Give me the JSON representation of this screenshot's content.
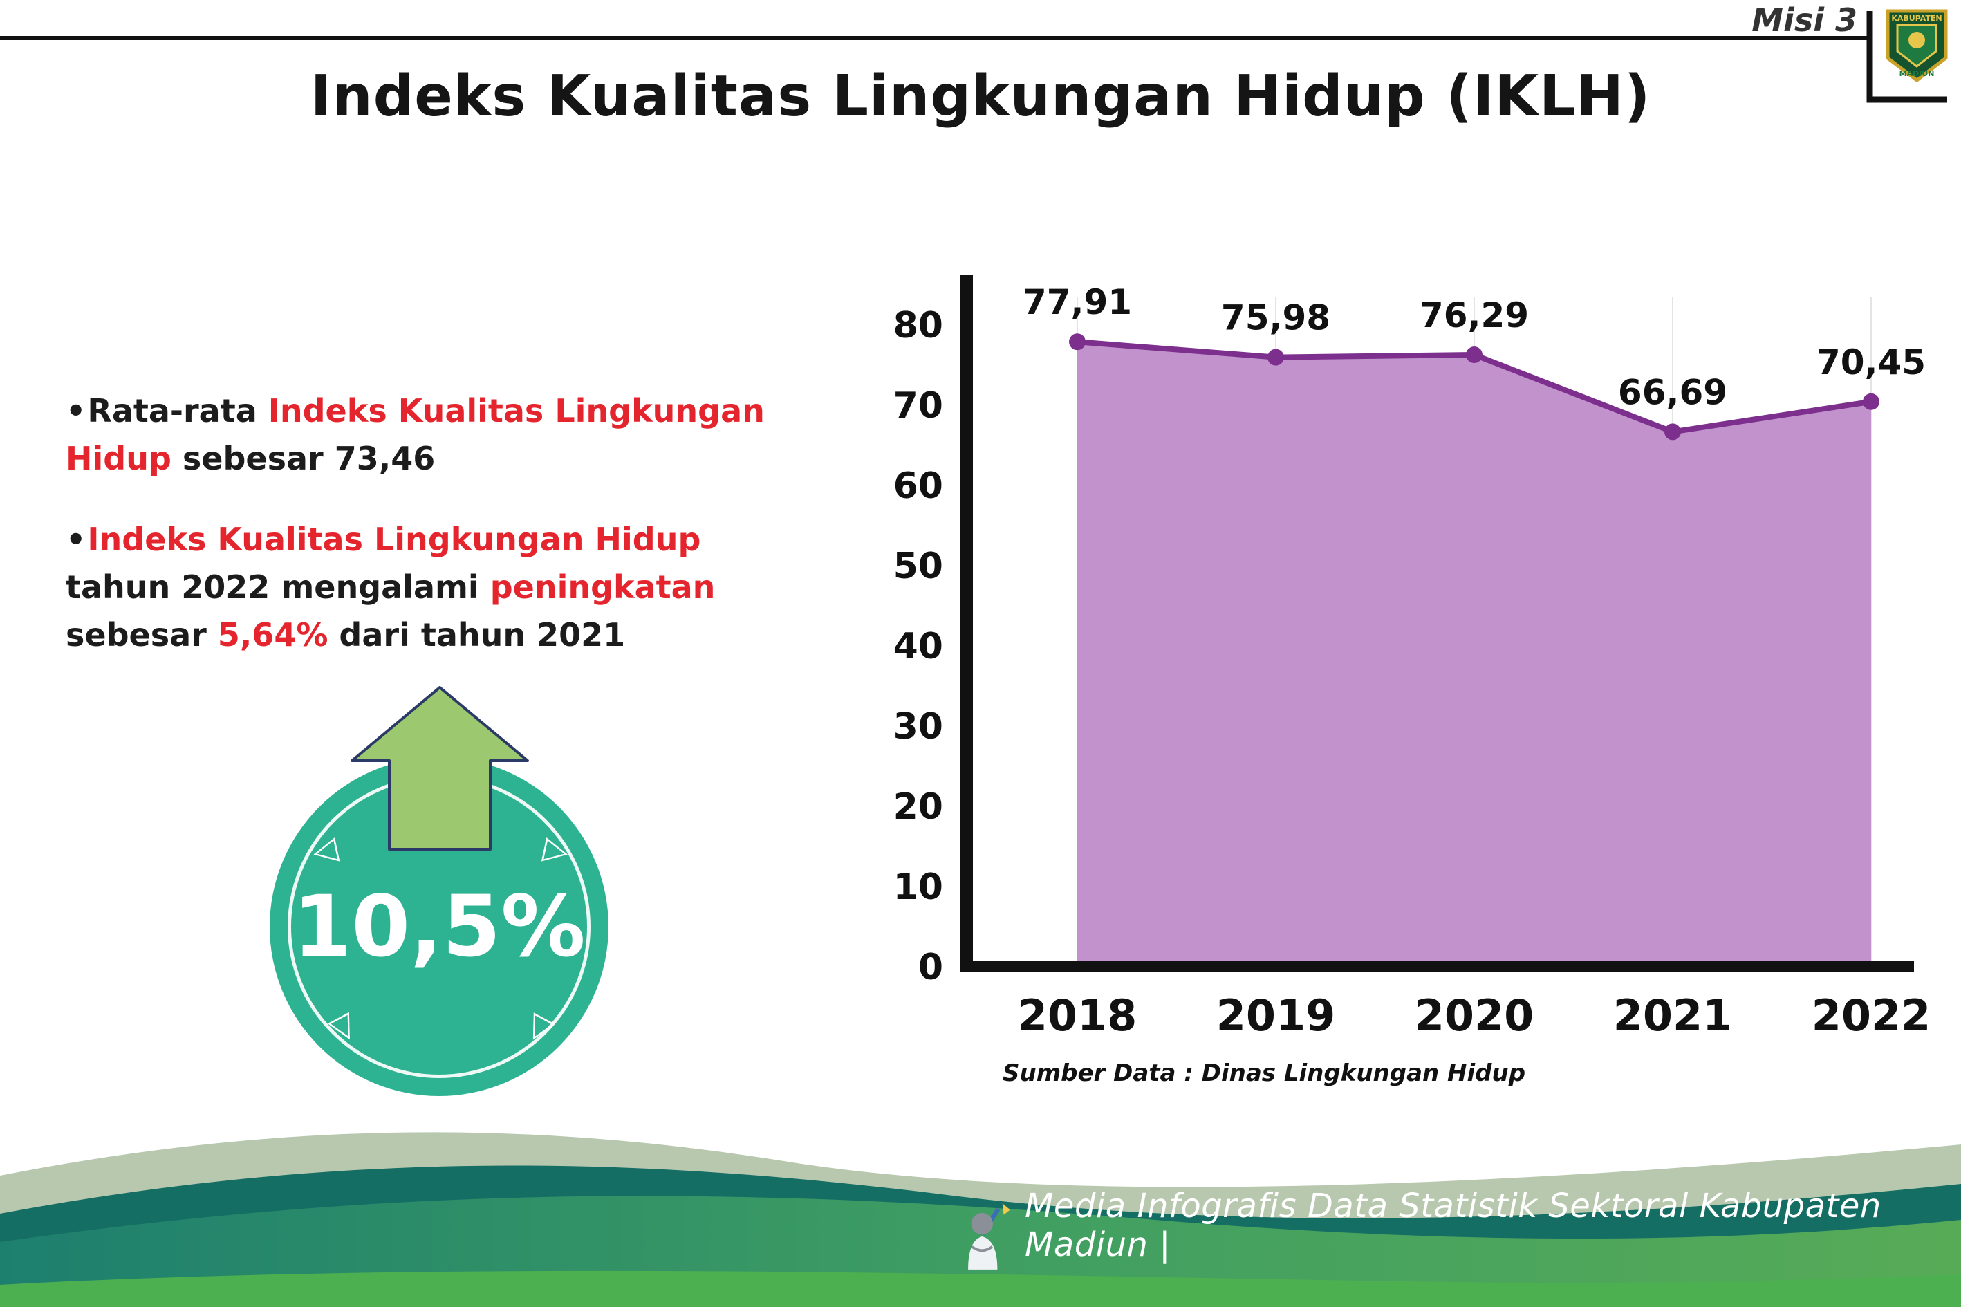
{
  "header": {
    "misi_label": "Misi 3",
    "title": "Indeks Kualitas Lingkungan Hidup (IKLH)",
    "logo": {
      "top_text": "KABUPATEN",
      "bottom_text": "MADIUN"
    }
  },
  "bullets": [
    {
      "segments": [
        {
          "text": "Rata-rata ",
          "red": false
        },
        {
          "text": "Indeks Kualitas Lingkungan Hidup",
          "red": true
        },
        {
          "text": " sebesar 73,46",
          "red": false
        }
      ]
    },
    {
      "segments": [
        {
          "text": "Indeks Kualitas Lingkungan Hidup",
          "red": true
        },
        {
          "text": " tahun 2022 mengalami ",
          "red": false
        },
        {
          "text": "peningkatan",
          "red": true
        },
        {
          "text": " sebesar ",
          "red": false
        },
        {
          "text": "5,64%",
          "red": true
        },
        {
          "text": " dari tahun 2021",
          "red": false
        }
      ]
    }
  ],
  "badge": {
    "value": "10,5%",
    "circle_color": "#2db391",
    "arrow_color": "#9cc96f"
  },
  "chart_data": {
    "type": "area",
    "categories": [
      "2018",
      "2019",
      "2020",
      "2021",
      "2022"
    ],
    "values": [
      77.91,
      75.98,
      76.29,
      66.69,
      70.45
    ],
    "value_labels": [
      "77,91",
      "75,98",
      "76,29",
      "66,69",
      "70,45"
    ],
    "title": "",
    "xlabel": "",
    "ylabel": "",
    "ylim": [
      0,
      80
    ],
    "yticks": [
      0,
      10,
      20,
      30,
      40,
      50,
      60,
      70,
      80
    ],
    "grid": true,
    "legend": "none",
    "fill_color": "#c192cc",
    "line_color": "#7c2f8d",
    "source": "Sumber Data : Dinas Lingkungan Hidup"
  },
  "footer": {
    "credit": "Media Infografis Data Statistik Sektoral Kabupaten Madiun |"
  }
}
